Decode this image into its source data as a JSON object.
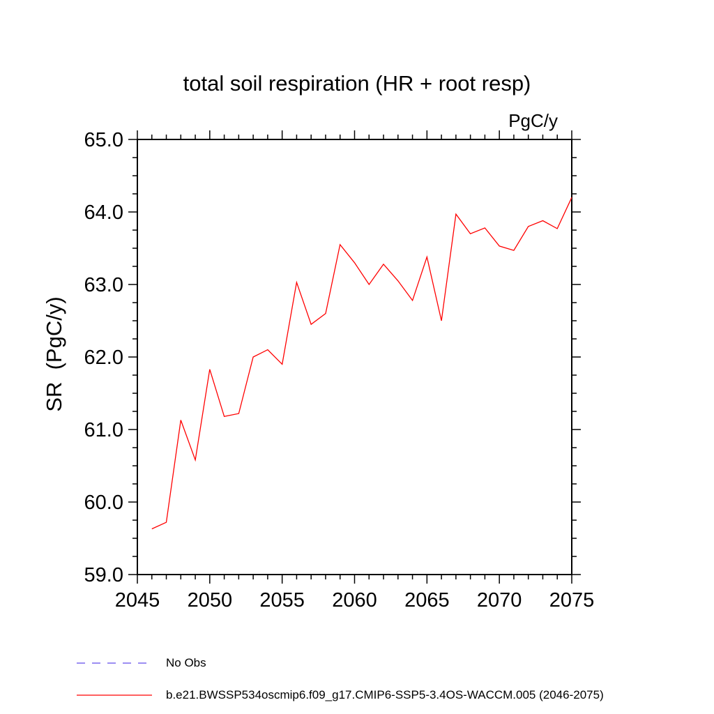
{
  "chart": {
    "title": "total soil respiration (HR + root resp)",
    "units_label": "PgC/y",
    "y_axis_title": "SR  (PgC/y)"
  },
  "legend": [
    {
      "label": "No Obs",
      "style": "dashed",
      "color": "#7B68EE"
    },
    {
      "label": "b.e21.BWSSP534oscmip6.f09_g17.CMIP6-SSP5-3.4OS-WACCM.005 (2046-2075)",
      "style": "solid",
      "color": "#FF0000"
    }
  ],
  "chart_data": {
    "type": "line",
    "title": "total soil respiration (HR + root resp)",
    "xlabel": "",
    "ylabel": "SR (PgC/y)",
    "units": "PgC/y",
    "xlim": [
      2045,
      2075
    ],
    "ylim": [
      59.0,
      65.0
    ],
    "grid": false,
    "legend_position": "bottom-left",
    "x_major_ticks": [
      2045,
      2050,
      2055,
      2060,
      2065,
      2070,
      2075
    ],
    "x_tick_labels": [
      "2045",
      "2050",
      "2055",
      "2060",
      "2065",
      "2070",
      "2075"
    ],
    "x_minor_step": 1,
    "y_major_ticks": [
      59.0,
      60.0,
      61.0,
      62.0,
      63.0,
      64.0,
      65.0
    ],
    "y_tick_labels": [
      "59.0",
      "60.0",
      "61.0",
      "62.0",
      "63.0",
      "64.0",
      "65.0"
    ],
    "y_minor_step": 0.25,
    "series": [
      {
        "name": "b.e21.BWSSP534oscmip6.f09_g17.CMIP6-SSP5-3.4OS-WACCM.005 (2046-2075)",
        "color": "#FF0000",
        "x": [
          2046,
          2047,
          2048,
          2049,
          2050,
          2051,
          2052,
          2053,
          2054,
          2055,
          2056,
          2057,
          2058,
          2059,
          2060,
          2061,
          2062,
          2063,
          2064,
          2065,
          2066,
          2067,
          2068,
          2069,
          2070,
          2071,
          2072,
          2073,
          2074,
          2075
        ],
        "y": [
          59.63,
          59.72,
          61.13,
          60.58,
          61.83,
          61.18,
          61.22,
          62.0,
          62.1,
          61.9,
          63.03,
          62.45,
          62.6,
          63.55,
          63.3,
          63.0,
          63.28,
          63.05,
          62.78,
          63.38,
          62.5,
          63.97,
          63.7,
          63.78,
          63.53,
          63.47,
          63.8,
          63.88,
          63.77,
          64.2
        ]
      }
    ]
  }
}
